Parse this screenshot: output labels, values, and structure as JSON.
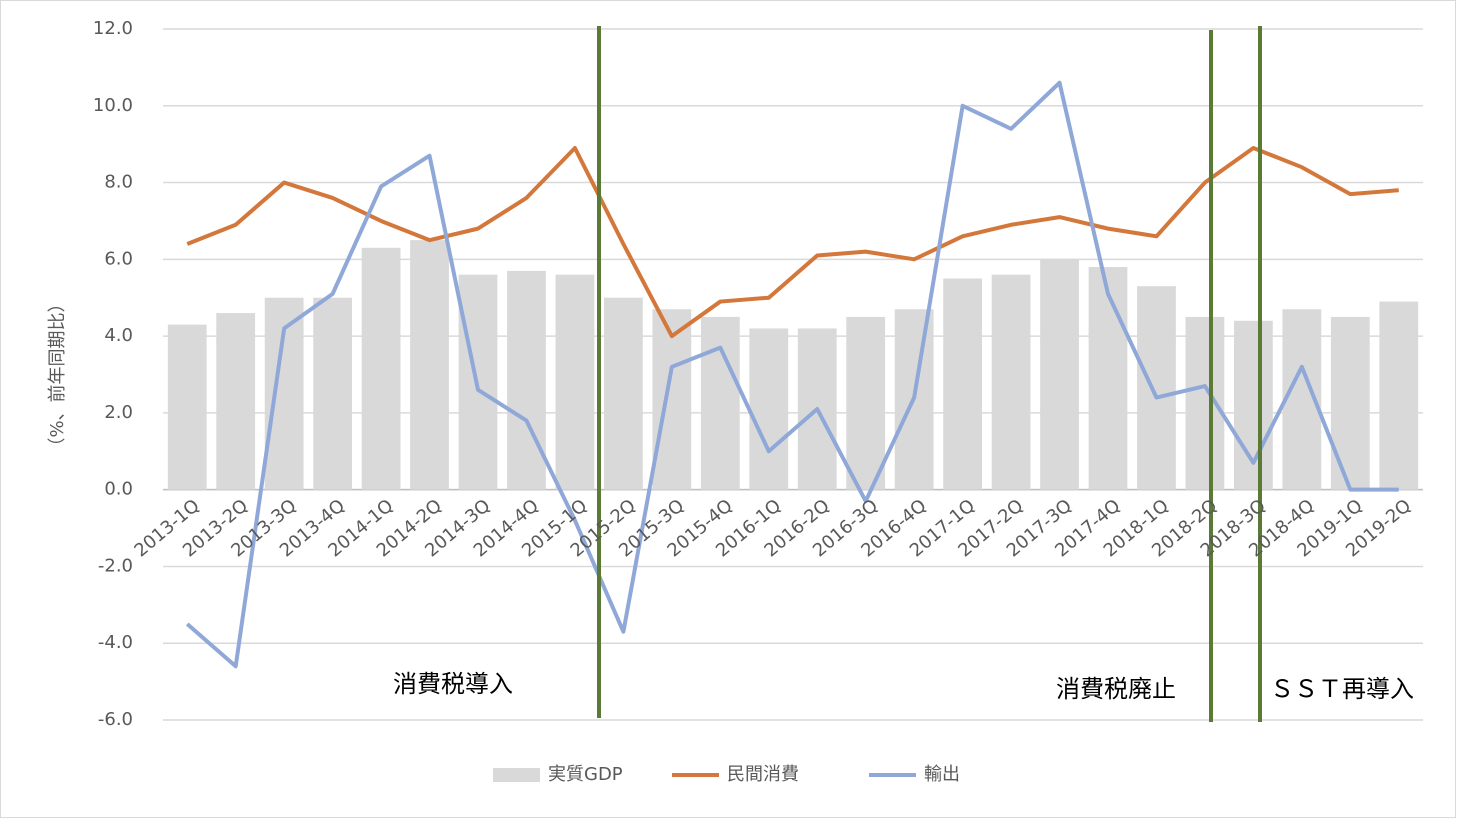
{
  "chart_data": {
    "type": "bar",
    "y_label": "（%、前年同期比）",
    "categories": [
      "2013-1Q",
      "2013-2Q",
      "2013-3Q",
      "2013-4Q",
      "2014-1Q",
      "2014-2Q",
      "2014-3Q",
      "2014-4Q",
      "2015-1Q",
      "2015-2Q",
      "2015-3Q",
      "2015-4Q",
      "2016-1Q",
      "2016-2Q",
      "2016-3Q",
      "2016-4Q",
      "2017-1Q",
      "2017-2Q",
      "2017-3Q",
      "2017-4Q",
      "2018-1Q",
      "2018-2Q",
      "2018-3Q",
      "2018-4Q",
      "2019-1Q",
      "2019-2Q"
    ],
    "series": [
      {
        "name": "実質GDP",
        "type": "bar",
        "color": "#d9d9d9",
        "values": [
          4.3,
          4.6,
          5.0,
          5.0,
          6.3,
          6.5,
          5.6,
          5.7,
          5.6,
          5.0,
          4.7,
          4.5,
          4.2,
          4.2,
          4.5,
          4.7,
          5.5,
          5.6,
          6.0,
          5.8,
          5.3,
          4.5,
          4.4,
          4.7,
          4.5,
          4.9
        ]
      },
      {
        "name": "民間消費",
        "type": "line",
        "color": "#d4773a",
        "values": [
          6.4,
          6.9,
          8.0,
          7.6,
          7.0,
          6.5,
          6.8,
          7.6,
          8.9,
          6.4,
          4.0,
          4.9,
          5.0,
          6.1,
          6.2,
          6.0,
          6.6,
          6.9,
          7.1,
          6.8,
          6.6,
          8.0,
          8.9,
          8.4,
          7.7,
          7.8
        ]
      },
      {
        "name": "輸出",
        "type": "line",
        "color": "#8fa8d8",
        "values": [
          -3.5,
          -4.6,
          4.2,
          5.1,
          7.9,
          8.7,
          2.6,
          1.8,
          -0.8,
          -3.7,
          3.2,
          3.7,
          1.0,
          2.1,
          -0.3,
          2.4,
          10.0,
          9.4,
          10.6,
          5.1,
          2.4,
          2.7,
          0.7,
          3.2,
          0.0,
          0.0
        ]
      }
    ],
    "ylim": [
      -6,
      12
    ],
    "yticks": [
      {
        "value": -6,
        "label": "-6.0"
      },
      {
        "value": -4,
        "label": "-4.0"
      },
      {
        "value": -2,
        "label": "-2.0"
      },
      {
        "value": 0,
        "label": "0.0"
      },
      {
        "value": 2,
        "label": "2.0"
      },
      {
        "value": 4,
        "label": "4.0"
      },
      {
        "value": 6,
        "label": "6.0"
      },
      {
        "value": 8,
        "label": "8.0"
      },
      {
        "value": 10,
        "label": "10.0"
      },
      {
        "value": 12,
        "label": "12.0"
      }
    ],
    "grid": true,
    "annotations": [
      "消費税導入",
      "消費税廃止",
      "ＳＳＴ再導入"
    ]
  }
}
